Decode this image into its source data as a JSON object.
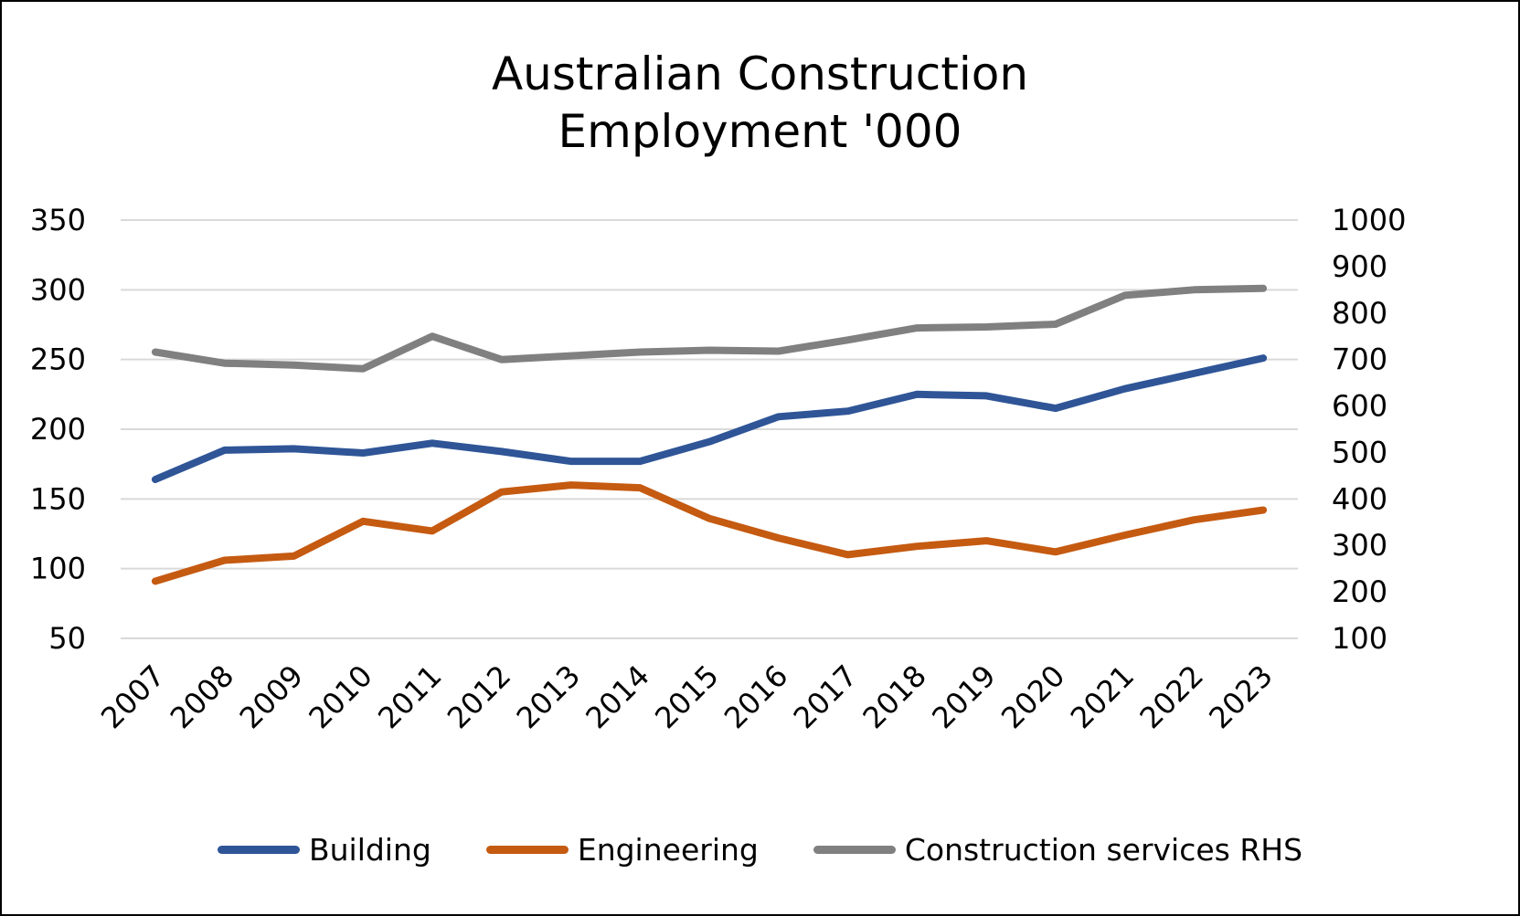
{
  "chart_data": {
    "type": "line",
    "title_lines": [
      "Australian Construction",
      "Employment '000"
    ],
    "categories": [
      "2007",
      "2008",
      "2009",
      "2010",
      "2011",
      "2012",
      "2013",
      "2014",
      "2015",
      "2016",
      "2017",
      "2018",
      "2019",
      "2020",
      "2021",
      "2022",
      "2023"
    ],
    "y_left": {
      "ticks": [
        50,
        100,
        150,
        200,
        250,
        300,
        350
      ],
      "range": [
        50,
        350
      ]
    },
    "y_right": {
      "ticks": [
        100,
        200,
        300,
        400,
        500,
        600,
        700,
        800,
        900,
        1000
      ],
      "range": [
        100,
        1000
      ]
    },
    "series": [
      {
        "name": "Building",
        "axis": "left",
        "color": "#2F5597",
        "values": [
          164,
          185,
          186,
          183,
          190,
          184,
          177,
          177,
          191,
          209,
          213,
          225,
          224,
          215,
          229,
          240,
          251
        ]
      },
      {
        "name": "Engineering",
        "axis": "left",
        "color": "#C55A11",
        "values": [
          91,
          106,
          109,
          134,
          127,
          155,
          160,
          158,
          136,
          122,
          110,
          116,
          120,
          112,
          124,
          135,
          142
        ]
      },
      {
        "name": "Construction services RHS",
        "axis": "right",
        "color": "#808080",
        "values": [
          716,
          692,
          688,
          680,
          750,
          700,
          708,
          716,
          720,
          718,
          742,
          768,
          770,
          776,
          838,
          850,
          853
        ]
      }
    ],
    "grid": true,
    "legend_position": "bottom"
  }
}
